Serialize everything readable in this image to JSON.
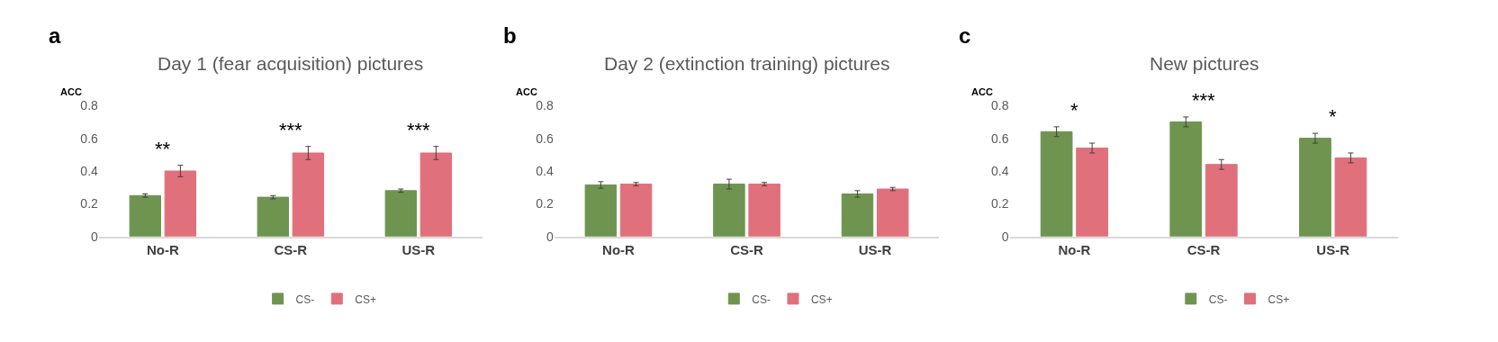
{
  "chart_data": [
    {
      "type": "bar",
      "title": "Day 1 (fear acquisition) pictures",
      "ylabel": "ACC",
      "categories": [
        "No-R",
        "CS-R",
        "US-R"
      ],
      "series": [
        {
          "name": "CS-",
          "color": "#6f9450",
          "values": [
            0.25,
            0.24,
            0.28
          ],
          "errors": [
            0.01,
            0.01,
            0.01
          ]
        },
        {
          "name": "CS+",
          "color": "#e0707c",
          "values": [
            0.4,
            0.51,
            0.51
          ],
          "errors": [
            0.035,
            0.04,
            0.04
          ]
        }
      ],
      "ylim": [
        0,
        0.8
      ],
      "yticks": [
        0,
        0.2,
        0.4,
        0.6,
        0.8
      ],
      "grid": false,
      "legend": "bottom",
      "annotations": [
        "a",
        "**",
        "***",
        "***"
      ]
    },
    {
      "type": "bar",
      "title": "Day 2 (extinction training) pictures",
      "ylabel": "ACC",
      "categories": [
        "No-R",
        "CS-R",
        "US-R"
      ],
      "series": [
        {
          "name": "CS-",
          "color": "#6f9450",
          "values": [
            0.315,
            0.32,
            0.26
          ],
          "errors": [
            0.02,
            0.03,
            0.02
          ]
        },
        {
          "name": "CS+",
          "color": "#e0707c",
          "values": [
            0.32,
            0.32,
            0.29
          ],
          "errors": [
            0.01,
            0.01,
            0.01
          ]
        }
      ],
      "ylim": [
        0,
        0.8
      ],
      "yticks": [
        0,
        0.2,
        0.4,
        0.6,
        0.8
      ],
      "grid": false,
      "legend": "bottom",
      "annotations": [
        "b"
      ]
    },
    {
      "type": "bar",
      "title": "New pictures",
      "ylabel": "ACC",
      "categories": [
        "No-R",
        "CS-R",
        "US-R"
      ],
      "series": [
        {
          "name": "CS-",
          "color": "#6f9450",
          "values": [
            0.64,
            0.7,
            0.6
          ],
          "errors": [
            0.03,
            0.03,
            0.03
          ]
        },
        {
          "name": "CS+",
          "color": "#e0707c",
          "values": [
            0.54,
            0.44,
            0.48
          ],
          "errors": [
            0.03,
            0.03,
            0.03
          ]
        }
      ],
      "ylim": [
        0,
        0.8
      ],
      "yticks": [
        0,
        0.2,
        0.4,
        0.6,
        0.8
      ],
      "grid": false,
      "legend": "bottom",
      "annotations": [
        "c",
        "*",
        "***",
        "*"
      ]
    }
  ]
}
